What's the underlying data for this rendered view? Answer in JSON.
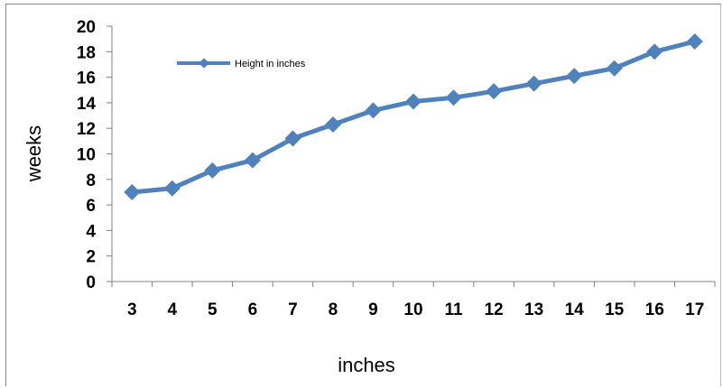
{
  "chart_data": {
    "type": "line",
    "title": "",
    "xlabel": "inches",
    "ylabel": "weeks",
    "x": [
      3,
      4,
      5,
      6,
      7,
      8,
      9,
      10,
      11,
      12,
      13,
      14,
      15,
      16,
      17
    ],
    "series": [
      {
        "name": "Height in inches",
        "color": "#4F81BD",
        "values": [
          7.0,
          7.3,
          8.7,
          9.5,
          11.2,
          12.3,
          13.4,
          14.1,
          14.4,
          14.9,
          15.5,
          16.1,
          16.7,
          18.0,
          18.8
        ]
      }
    ],
    "ylim": [
      0,
      20
    ],
    "yticks": [
      0,
      2,
      4,
      6,
      8,
      10,
      12,
      14,
      16,
      18,
      20
    ],
    "grid": false,
    "legend_position": "top-left inside plot"
  }
}
